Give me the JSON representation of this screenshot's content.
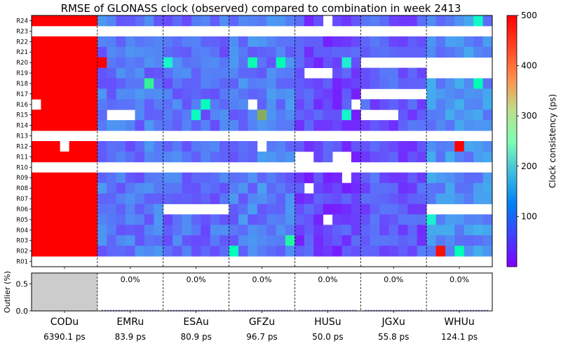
{
  "chart_data": {
    "type": "heatmap",
    "title": "RMSE of GLONASS clock (observed) compared to combination in week 2413",
    "rows": [
      "R24",
      "R23",
      "R22",
      "R21",
      "R20",
      "R19",
      "R18",
      "R17",
      "R16",
      "R15",
      "R14",
      "R13",
      "R12",
      "R11",
      "R10",
      "R09",
      "R08",
      "R07",
      "R06",
      "R05",
      "R04",
      "R03",
      "R02",
      "R01"
    ],
    "days_per_center": 7,
    "centers": [
      {
        "name": "CODu",
        "rms": "6390.1 ps",
        "outlier_label": ""
      },
      {
        "name": "EMRu",
        "rms": "83.9 ps",
        "outlier_label": "0.0%"
      },
      {
        "name": "ESAu",
        "rms": "80.9 ps",
        "outlier_label": "0.0%"
      },
      {
        "name": "GFZu",
        "rms": "96.7 ps",
        "outlier_label": "0.0%"
      },
      {
        "name": "HUSu",
        "rms": "50.0 ps",
        "outlier_label": "0.0%"
      },
      {
        "name": "JGXu",
        "rms": "55.8 ps",
        "outlier_label": "0.0%"
      },
      {
        "name": "WHUu",
        "rms": "124.1 ps",
        "outlier_label": "0.0%"
      }
    ],
    "missing_rows_all": [
      "R23",
      "R13",
      "R10",
      "R01"
    ],
    "missing_cells": [
      [
        "CODu",
        "R16",
        0
      ],
      [
        "CODu",
        "R12",
        3
      ],
      [
        "EMRu",
        "R15",
        1
      ],
      [
        "EMRu",
        "R15",
        2
      ],
      [
        "EMRu",
        "R15",
        3
      ],
      [
        "GFZu",
        "R16",
        2
      ],
      [
        "GFZu",
        "R12",
        3
      ],
      [
        "HUSu",
        "R24",
        3
      ],
      [
        "HUSu",
        "R19",
        1
      ],
      [
        "HUSu",
        "R19",
        2
      ],
      [
        "HUSu",
        "R19",
        3
      ],
      [
        "HUSu",
        "R16",
        6
      ],
      [
        "HUSu",
        "R11",
        0
      ],
      [
        "HUSu",
        "R11",
        1
      ],
      [
        "HUSu",
        "R11",
        4
      ],
      [
        "HUSu",
        "R11",
        5
      ],
      [
        "HUSu",
        "R09",
        5
      ],
      [
        "HUSu",
        "R08",
        1
      ],
      [
        "HUSu",
        "R05",
        3
      ],
      [
        "ESAu",
        "R06",
        0
      ],
      [
        "ESAu",
        "R06",
        1
      ],
      [
        "ESAu",
        "R06",
        2
      ],
      [
        "ESAu",
        "R06",
        3
      ],
      [
        "ESAu",
        "R06",
        4
      ],
      [
        "ESAu",
        "R06",
        5
      ],
      [
        "ESAu",
        "R06",
        6
      ],
      [
        "JGXu",
        "R20",
        0
      ],
      [
        "JGXu",
        "R20",
        1
      ],
      [
        "JGXu",
        "R20",
        2
      ],
      [
        "JGXu",
        "R20",
        3
      ],
      [
        "JGXu",
        "R20",
        4
      ],
      [
        "JGXu",
        "R20",
        5
      ],
      [
        "JGXu",
        "R20",
        6
      ],
      [
        "JGXu",
        "R17",
        0
      ],
      [
        "JGXu",
        "R17",
        1
      ],
      [
        "JGXu",
        "R17",
        2
      ],
      [
        "JGXu",
        "R17",
        3
      ],
      [
        "JGXu",
        "R17",
        4
      ],
      [
        "JGXu",
        "R17",
        5
      ],
      [
        "JGXu",
        "R17",
        6
      ],
      [
        "JGXu",
        "R15",
        0
      ],
      [
        "JGXu",
        "R15",
        1
      ],
      [
        "JGXu",
        "R15",
        2
      ],
      [
        "JGXu",
        "R15",
        3
      ],
      [
        "WHUu",
        "R20",
        0
      ],
      [
        "WHUu",
        "R20",
        1
      ],
      [
        "WHUu",
        "R20",
        2
      ],
      [
        "WHUu",
        "R20",
        3
      ],
      [
        "WHUu",
        "R20",
        4
      ],
      [
        "WHUu",
        "R20",
        5
      ],
      [
        "WHUu",
        "R20",
        6
      ],
      [
        "WHUu",
        "R19",
        0
      ],
      [
        "WHUu",
        "R19",
        1
      ],
      [
        "WHUu",
        "R19",
        2
      ],
      [
        "WHUu",
        "R19",
        3
      ],
      [
        "WHUu",
        "R19",
        4
      ],
      [
        "WHUu",
        "R19",
        5
      ],
      [
        "WHUu",
        "R19",
        6
      ],
      [
        "WHUu",
        "R06",
        0
      ],
      [
        "WHUu",
        "R06",
        1
      ],
      [
        "WHUu",
        "R06",
        2
      ],
      [
        "WHUu",
        "R06",
        3
      ],
      [
        "WHUu",
        "R06",
        4
      ],
      [
        "WHUu",
        "R06",
        5
      ],
      [
        "WHUu",
        "R06",
        6
      ]
    ],
    "high_cells": [
      [
        "EMRu",
        "R20",
        0,
        500
      ],
      [
        "WHUu",
        "R12",
        3,
        500
      ],
      [
        "WHUu",
        "R02",
        1,
        490
      ],
      [
        "GFZu",
        "R15",
        3,
        380
      ],
      [
        "EMRu",
        "R18",
        5,
        300
      ],
      [
        "GFZu",
        "R20",
        2,
        260
      ],
      [
        "GFZu",
        "R20",
        5,
        250
      ],
      [
        "GFZu",
        "R03",
        6,
        280
      ],
      [
        "GFZu",
        "R02",
        0,
        240
      ],
      [
        "ESAu",
        "R16",
        4,
        240
      ],
      [
        "WHUu",
        "R18",
        5,
        250
      ],
      [
        "ESAu",
        "R15",
        3,
        230
      ],
      [
        "WHUu",
        "R02",
        3,
        250
      ],
      [
        "WHUu",
        "R24",
        5,
        220
      ],
      [
        "HUSu",
        "R15",
        5,
        210
      ],
      [
        "ESAu",
        "R20",
        0,
        200
      ],
      [
        "WHUu",
        "R05",
        0,
        200
      ],
      [
        "HUSu",
        "R20",
        5,
        190
      ]
    ],
    "colorbar": {
      "label": "Clock consistency (ps)",
      "ticks": [
        100,
        200,
        300,
        400,
        500
      ],
      "range": [
        0,
        500
      ]
    },
    "outlier_panel": {
      "ylabel": "Outlier (%)",
      "ticks": [
        "0.0",
        "0.5"
      ],
      "ylim": [
        0,
        0.7
      ]
    }
  }
}
